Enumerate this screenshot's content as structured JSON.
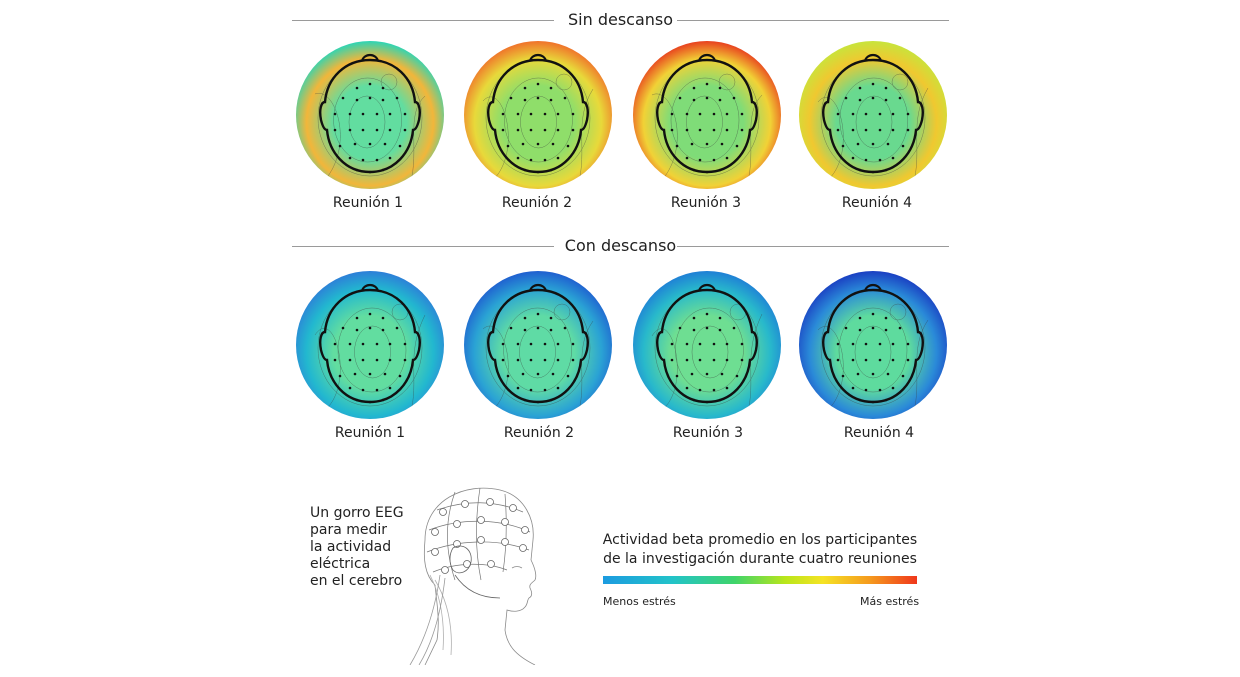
{
  "sections": [
    {
      "title": "Sin descanso",
      "maps": [
        {
          "label": "Reunión 1",
          "level": 0.4,
          "center": "#62dda0",
          "edge": "#2cd5b5",
          "accent": "#f2b63a"
        },
        {
          "label": "Reunión 2",
          "level": 0.72,
          "center": "#8fde6a",
          "edge": "#f0722a",
          "accent": "#e8d93a"
        },
        {
          "label": "Reunión 3",
          "level": 0.82,
          "center": "#7fdc78",
          "edge": "#e8401e",
          "accent": "#f1d236"
        },
        {
          "label": "Reunión 4",
          "level": 0.55,
          "center": "#69d98f",
          "edge": "#c8e43c",
          "accent": "#f0c830"
        }
      ]
    },
    {
      "title": "Con descanso",
      "maps": [
        {
          "label": "Reunión 1",
          "level": 0.28,
          "center": "#62dda0",
          "edge": "#2d7fd8",
          "accent": "#22b8cf"
        },
        {
          "label": "Reunión 2",
          "level": 0.18,
          "center": "#5fdba5",
          "edge": "#1f5fd0",
          "accent": "#2aa3d4"
        },
        {
          "label": "Reunión 3",
          "level": 0.22,
          "center": "#6ede92",
          "edge": "#1f80d6",
          "accent": "#28b9cb"
        },
        {
          "label": "Reunión 4",
          "level": 0.1,
          "center": "#5edb9e",
          "edge": "#1a3fc2",
          "accent": "#2a8ad8"
        }
      ]
    }
  ],
  "caption": [
    "Un gorro EEG",
    "para medir",
    "la actividad",
    "eléctrica",
    "en el cerebro"
  ],
  "legend": {
    "title_line1": "Actividad beta promedio en los participantes",
    "title_line2": "de la investigación durante cuatro reuniones",
    "low_label": "Menos estrés",
    "high_label": "Más estrés"
  },
  "colors": {
    "text": "#222222",
    "rule": "#9a9a9a",
    "head_outline": "#111111"
  }
}
